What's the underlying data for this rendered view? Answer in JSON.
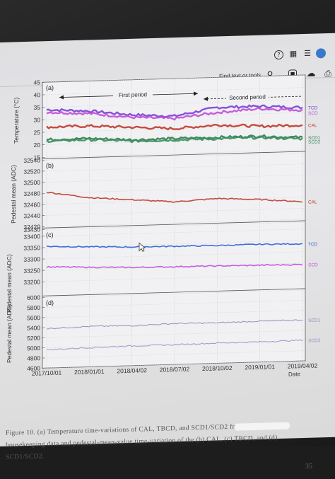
{
  "toolbar": {
    "find_label": "Find text or tools",
    "icons": [
      "help-icon",
      "grid-icon",
      "bell-icon",
      "search-icon",
      "save-icon",
      "share-icon",
      "print-icon"
    ]
  },
  "figure": {
    "x_ticks": [
      "2017/10/01",
      "2018/01/01",
      "2018/04/02",
      "2018/07/02",
      "2018/10/02",
      "2019/01/01",
      "2019/04/02"
    ],
    "x_axis_label": "Date",
    "period_first": "First period",
    "period_second": "Second period"
  },
  "chart_data": [
    {
      "type": "line",
      "panel": "(a)",
      "ylabel": "Temperature (°C)",
      "ylim": [
        15,
        45
      ],
      "yticks": [
        15,
        20,
        25,
        30,
        35,
        40,
        45
      ],
      "series": [
        {
          "name": "TCD",
          "color": "#7b3fd6",
          "x": [
            "2017/10/01",
            "2018/01/01",
            "2018/04/02",
            "2018/07/02",
            "2018/10/02",
            "2019/01/01",
            "2019/04/02"
          ],
          "values": [
            34,
            33,
            31,
            30,
            33,
            33,
            32
          ]
        },
        {
          "name": "SCD",
          "color": "#c04fd8",
          "x": [
            "2017/10/01",
            "2018/01/01",
            "2018/04/02",
            "2018/07/02",
            "2018/10/02",
            "2019/01/01",
            "2019/04/02"
          ],
          "values": [
            33,
            32,
            30,
            29,
            31,
            32,
            31
          ]
        },
        {
          "name": "CAL",
          "color": "#c0392b",
          "x": [
            "2017/10/01",
            "2018/01/01",
            "2018/04/02",
            "2018/07/02",
            "2018/10/02",
            "2019/01/01",
            "2019/04/02"
          ],
          "values": [
            27,
            27,
            26,
            25,
            26,
            25,
            25
          ]
        },
        {
          "name": "SCD1",
          "color": "#2e7d4f",
          "x": [
            "2017/10/01",
            "2018/01/01",
            "2018/04/02",
            "2018/07/02",
            "2018/10/02",
            "2019/01/01",
            "2019/04/02"
          ],
          "values": [
            22,
            22,
            21,
            21,
            21,
            21,
            20
          ]
        },
        {
          "name": "SCD2",
          "color": "#3b8f60",
          "x": [
            "2017/10/01",
            "2018/01/01",
            "2018/04/02",
            "2018/07/02",
            "2018/10/02",
            "2019/01/01",
            "2019/04/02"
          ],
          "values": [
            21.5,
            21.5,
            20.5,
            20.5,
            20.5,
            20.5,
            19.5
          ]
        }
      ]
    },
    {
      "type": "line",
      "panel": "(b)",
      "ylabel": "Pedestal mean (ADC)",
      "ylim": [
        32420,
        32540
      ],
      "yticks": [
        32420,
        32440,
        32460,
        32480,
        32500,
        32520,
        32540
      ],
      "series": [
        {
          "name": "CAL",
          "color": "#c0392b",
          "x": [
            "2017/10/01",
            "2018/01/01",
            "2018/04/02",
            "2018/07/02",
            "2018/10/02",
            "2019/01/01",
            "2019/04/02"
          ],
          "values": [
            32482,
            32470,
            32464,
            32458,
            32462,
            32458,
            32452
          ]
        }
      ]
    },
    {
      "type": "line",
      "panel": "(c)",
      "ylabel": "Pedestal mean (ADC)",
      "ylim": [
        33150,
        33430
      ],
      "yticks": [
        33200,
        33250,
        33300,
        33350,
        33400,
        33430
      ],
      "series": [
        {
          "name": "TCD",
          "color": "#2f5fd8",
          "x": [
            "2017/10/01",
            "2018/01/01",
            "2018/04/02",
            "2018/07/02",
            "2018/10/02",
            "2019/01/01",
            "2019/04/02"
          ],
          "values": [
            33355,
            33348,
            33342,
            33340,
            33338,
            33338,
            33335
          ]
        },
        {
          "name": "SCD",
          "color": "#c04fd8",
          "x": [
            "2017/10/01",
            "2018/01/01",
            "2018/04/02",
            "2018/07/02",
            "2018/10/02",
            "2019/01/01",
            "2019/04/02"
          ],
          "values": [
            33265,
            33258,
            33252,
            33250,
            33248,
            33246,
            33244
          ]
        }
      ]
    },
    {
      "type": "line",
      "panel": "(d)",
      "ylabel": "Pedestal mean (ADC)",
      "ylim": [
        4600,
        6000
      ],
      "yticks": [
        4600,
        4800,
        5000,
        5200,
        5400,
        5600,
        5800,
        6000
      ],
      "series": [
        {
          "name": "SCD1",
          "color": "#8a8ab8",
          "x": [
            "2017/10/01",
            "2018/01/01",
            "2018/04/02",
            "2018/07/02",
            "2018/10/02",
            "2019/01/01",
            "2019/04/02"
          ],
          "values": [
            5380,
            5400,
            5390,
            5410,
            5400,
            5410,
            5410
          ]
        },
        {
          "name": "SCD2",
          "color": "#9090c8",
          "x": [
            "2017/10/01",
            "2018/01/01",
            "2018/04/02",
            "2018/07/02",
            "2018/10/02",
            "2019/01/01",
            "2019/04/02"
          ],
          "values": [
            4960,
            4980,
            4990,
            4990,
            5000,
            5000,
            5010
          ]
        }
      ]
    }
  ],
  "caption": {
    "line1_a": "Figure 10. (a) Temperature time-variations of CAL, TBCD, and SCD1/SCD2 fr",
    "line2": "housekeeping data and pedestal-mean-value time-variation of the (b) CAL, (c) TBCD, and (d)",
    "line3": "SCD1/SCD2."
  },
  "page_number": "35"
}
